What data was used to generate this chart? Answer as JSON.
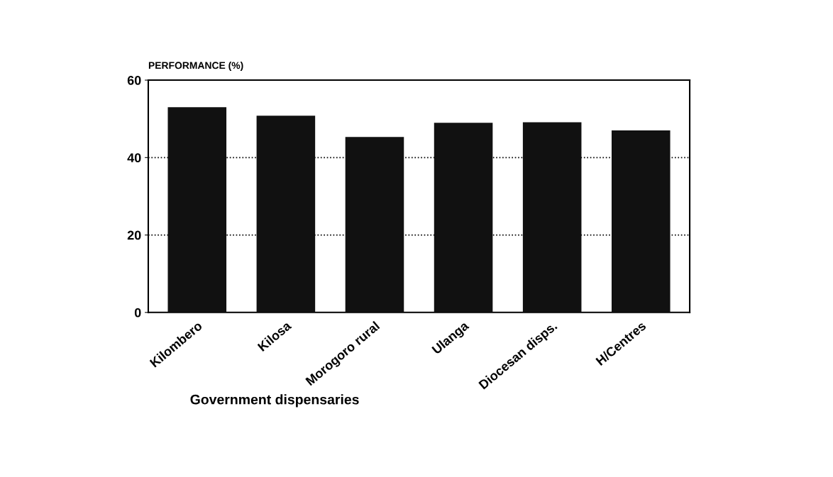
{
  "chart_data": {
    "type": "bar",
    "ylabel": "PERFORMANCE (%)",
    "xlabel": "Government dispensaries",
    "categories": [
      "Kilombero",
      "Kilosa",
      "Morogoro rural",
      "Ulanga",
      "Diocesan disps.",
      "H/Centres"
    ],
    "values": [
      53.0,
      50.8,
      45.3,
      49.0,
      49.1,
      47.0
    ],
    "color": "#111111",
    "ylim": [
      0,
      60
    ],
    "yticks": [
      0,
      20,
      40,
      60
    ],
    "grid": "y",
    "line_style": "dotted"
  }
}
